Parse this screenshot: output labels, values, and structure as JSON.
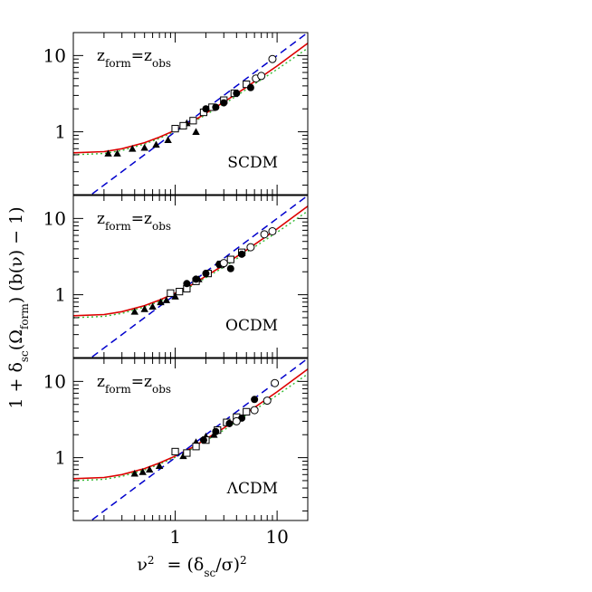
{
  "chart_data": {
    "type": "scatter",
    "xlabel_parts": [
      "ν",
      "2",
      "= (δ",
      "sc",
      "/σ)",
      "2"
    ],
    "ylabel_parts": [
      "1 + δ",
      "sc",
      "(Ω",
      "form",
      ") (b(ν) − 1)"
    ],
    "x_scale": "log",
    "y_scale": "log",
    "xlim": [
      0.1,
      20
    ],
    "ylim": [
      0.15,
      20
    ],
    "x_ticks": [
      {
        "value": 1,
        "label": "1"
      },
      {
        "value": 10,
        "label": "10"
      }
    ],
    "y_ticks": [
      {
        "value": 1,
        "label": "1"
      },
      {
        "value": 10,
        "label": "10"
      }
    ],
    "colors": {
      "red": "#dd0000",
      "blue": "#0000cc",
      "green": "#33bb33",
      "black": "#000000"
    },
    "panels": [
      {
        "label": "SCDM",
        "annotation": {
          "z": "z",
          "form": "form",
          "eq": "=",
          "obs": "obs"
        },
        "triangles": [
          [
            0.22,
            0.52
          ],
          [
            0.27,
            0.52
          ],
          [
            0.38,
            0.6
          ],
          [
            0.5,
            0.62
          ],
          [
            0.65,
            0.68
          ],
          [
            0.85,
            0.78
          ],
          [
            1.3,
            1.3
          ],
          [
            1.6,
            1.0
          ]
        ],
        "open_squares": [
          [
            1.0,
            1.1
          ],
          [
            1.2,
            1.2
          ],
          [
            1.5,
            1.4
          ],
          [
            1.9,
            1.8
          ],
          [
            2.3,
            2.1
          ],
          [
            3.0,
            2.6
          ],
          [
            3.8,
            3.2
          ],
          [
            5.0,
            4.2
          ]
        ],
        "filled_circles": [
          [
            2.0,
            2.0
          ],
          [
            2.5,
            2.1
          ],
          [
            3.0,
            2.4
          ],
          [
            4.0,
            3.2
          ],
          [
            5.5,
            3.8
          ]
        ],
        "open_circles": [
          [
            6.2,
            5.0
          ],
          [
            7.0,
            5.4
          ],
          [
            9.0,
            9.0
          ]
        ],
        "lines": {
          "red": [
            [
              0.1,
              0.53
            ],
            [
              0.2,
              0.55
            ],
            [
              0.3,
              0.6
            ],
            [
              0.5,
              0.72
            ],
            [
              0.7,
              0.85
            ],
            [
              1.0,
              1.05
            ],
            [
              1.5,
              1.38
            ],
            [
              2.0,
              1.75
            ],
            [
              3.0,
              2.45
            ],
            [
              5.0,
              3.85
            ],
            [
              10.0,
              7.3
            ],
            [
              20.0,
              14.5
            ]
          ],
          "green": [
            [
              0.1,
              0.5
            ],
            [
              0.2,
              0.52
            ],
            [
              0.3,
              0.57
            ],
            [
              0.5,
              0.69
            ],
            [
              0.7,
              0.82
            ],
            [
              1.0,
              1.01
            ],
            [
              1.5,
              1.33
            ],
            [
              2.0,
              1.67
            ],
            [
              3.0,
              2.3
            ],
            [
              5.0,
              3.6
            ],
            [
              10.0,
              6.6
            ],
            [
              20.0,
              12.5
            ]
          ],
          "blue": [
            [
              0.1,
              0.1
            ],
            [
              20.0,
              20.0
            ]
          ]
        }
      },
      {
        "label": "OCDM",
        "annotation": {
          "z": "z",
          "form": "form",
          "eq": "=",
          "obs": "obs"
        },
        "triangles": [
          [
            0.4,
            0.6
          ],
          [
            0.5,
            0.65
          ],
          [
            0.6,
            0.7
          ],
          [
            0.72,
            0.8
          ],
          [
            0.82,
            0.85
          ],
          [
            1.0,
            0.95
          ],
          [
            1.7,
            1.6
          ],
          [
            2.1,
            1.9
          ]
        ],
        "open_squares": [
          [
            0.9,
            1.05
          ],
          [
            1.1,
            1.1
          ],
          [
            1.3,
            1.2
          ],
          [
            1.6,
            1.5
          ],
          [
            2.1,
            1.9
          ],
          [
            2.8,
            2.5
          ],
          [
            3.5,
            2.9
          ],
          [
            4.5,
            3.6
          ]
        ],
        "filled_circles": [
          [
            1.3,
            1.4
          ],
          [
            1.6,
            1.6
          ],
          [
            2.0,
            1.9
          ],
          [
            2.7,
            2.5
          ],
          [
            3.5,
            2.2
          ],
          [
            4.5,
            3.4
          ]
        ],
        "open_circles": [
          [
            3.0,
            2.6
          ],
          [
            5.5,
            4.2
          ],
          [
            7.5,
            6.2
          ],
          [
            9.0,
            6.8
          ]
        ],
        "lines": {
          "red": [
            [
              0.1,
              0.53
            ],
            [
              0.2,
              0.55
            ],
            [
              0.3,
              0.6
            ],
            [
              0.5,
              0.72
            ],
            [
              0.7,
              0.85
            ],
            [
              1.0,
              1.05
            ],
            [
              1.5,
              1.38
            ],
            [
              2.0,
              1.75
            ],
            [
              3.0,
              2.45
            ],
            [
              5.0,
              3.85
            ],
            [
              10.0,
              7.3
            ],
            [
              20.0,
              14.5
            ]
          ],
          "green": [
            [
              0.1,
              0.5
            ],
            [
              0.2,
              0.52
            ],
            [
              0.3,
              0.57
            ],
            [
              0.5,
              0.69
            ],
            [
              0.7,
              0.82
            ],
            [
              1.0,
              1.01
            ],
            [
              1.5,
              1.33
            ],
            [
              2.0,
              1.67
            ],
            [
              3.0,
              2.3
            ],
            [
              5.0,
              3.6
            ],
            [
              10.0,
              6.6
            ],
            [
              20.0,
              12.5
            ]
          ],
          "blue": [
            [
              0.1,
              0.1
            ],
            [
              20.0,
              20.0
            ]
          ]
        }
      },
      {
        "label": "ΛCDM",
        "annotation": {
          "z": "z",
          "form": "form",
          "eq": "=",
          "obs": "obs"
        },
        "triangles": [
          [
            0.4,
            0.62
          ],
          [
            0.48,
            0.65
          ],
          [
            0.56,
            0.7
          ],
          [
            0.7,
            0.78
          ],
          [
            1.2,
            1.05
          ],
          [
            1.6,
            1.6
          ],
          [
            2.0,
            1.9
          ],
          [
            2.4,
            2.0
          ]
        ],
        "open_squares": [
          [
            1.0,
            1.2
          ],
          [
            1.3,
            1.15
          ],
          [
            1.6,
            1.4
          ],
          [
            2.0,
            1.7
          ],
          [
            2.6,
            2.3
          ],
          [
            3.2,
            2.9
          ],
          [
            4.0,
            3.4
          ],
          [
            5.0,
            4.0
          ]
        ],
        "filled_circles": [
          [
            1.9,
            1.7
          ],
          [
            2.5,
            2.2
          ],
          [
            3.4,
            2.8
          ],
          [
            4.5,
            3.3
          ],
          [
            6.0,
            5.8
          ]
        ],
        "open_circles": [
          [
            4.0,
            3.0
          ],
          [
            6.0,
            4.2
          ],
          [
            8.0,
            5.6
          ],
          [
            9.5,
            9.5
          ]
        ],
        "lines": {
          "red": [
            [
              0.1,
              0.53
            ],
            [
              0.2,
              0.55
            ],
            [
              0.3,
              0.6
            ],
            [
              0.5,
              0.72
            ],
            [
              0.7,
              0.85
            ],
            [
              1.0,
              1.05
            ],
            [
              1.5,
              1.38
            ],
            [
              2.0,
              1.75
            ],
            [
              3.0,
              2.45
            ],
            [
              5.0,
              3.85
            ],
            [
              10.0,
              7.3
            ],
            [
              20.0,
              14.5
            ]
          ],
          "green": [
            [
              0.1,
              0.5
            ],
            [
              0.2,
              0.52
            ],
            [
              0.3,
              0.57
            ],
            [
              0.5,
              0.69
            ],
            [
              0.7,
              0.82
            ],
            [
              1.0,
              1.01
            ],
            [
              1.5,
              1.33
            ],
            [
              2.0,
              1.67
            ],
            [
              3.0,
              2.3
            ],
            [
              5.0,
              3.6
            ],
            [
              10.0,
              6.6
            ],
            [
              20.0,
              12.5
            ]
          ],
          "blue": [
            [
              0.1,
              0.1
            ],
            [
              20.0,
              20.0
            ]
          ]
        }
      }
    ]
  }
}
